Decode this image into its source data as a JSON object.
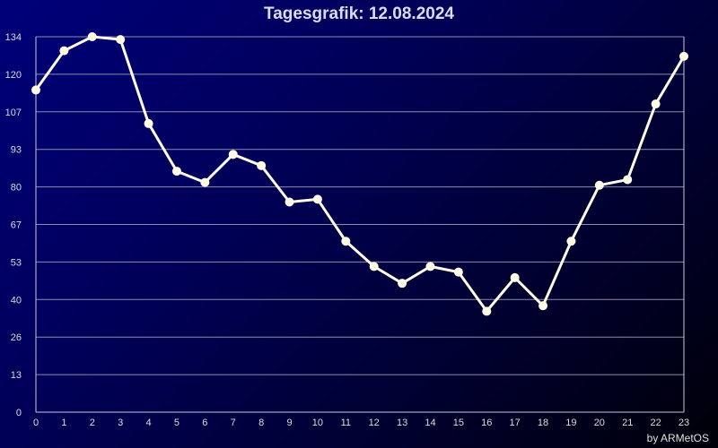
{
  "chart_data": {
    "type": "line",
    "title": "Tagesgrafik: 12.08.2024",
    "xlabel": "",
    "ylabel": "",
    "x": [
      0,
      1,
      2,
      3,
      4,
      5,
      6,
      7,
      8,
      9,
      10,
      11,
      12,
      13,
      14,
      15,
      16,
      17,
      18,
      19,
      20,
      21,
      22,
      23
    ],
    "values": [
      115,
      129,
      134,
      133,
      103,
      86,
      82,
      92,
      88,
      75,
      76,
      61,
      52,
      46,
      52,
      50,
      36,
      48,
      38,
      61,
      81,
      83,
      110,
      127
    ],
    "ylim": [
      0,
      134
    ],
    "yticks": [
      "0",
      "13",
      "26",
      "40",
      "53",
      "67",
      "80",
      "93",
      "107",
      "120",
      "134"
    ],
    "xticks": [
      "0",
      "1",
      "2",
      "3",
      "4",
      "5",
      "6",
      "7",
      "8",
      "9",
      "10",
      "11",
      "12",
      "13",
      "14",
      "15",
      "16",
      "17",
      "18",
      "19",
      "20",
      "21",
      "22",
      "23"
    ],
    "grid": true,
    "line_color": "#fffbe6"
  },
  "credit": "by ARMetOS"
}
